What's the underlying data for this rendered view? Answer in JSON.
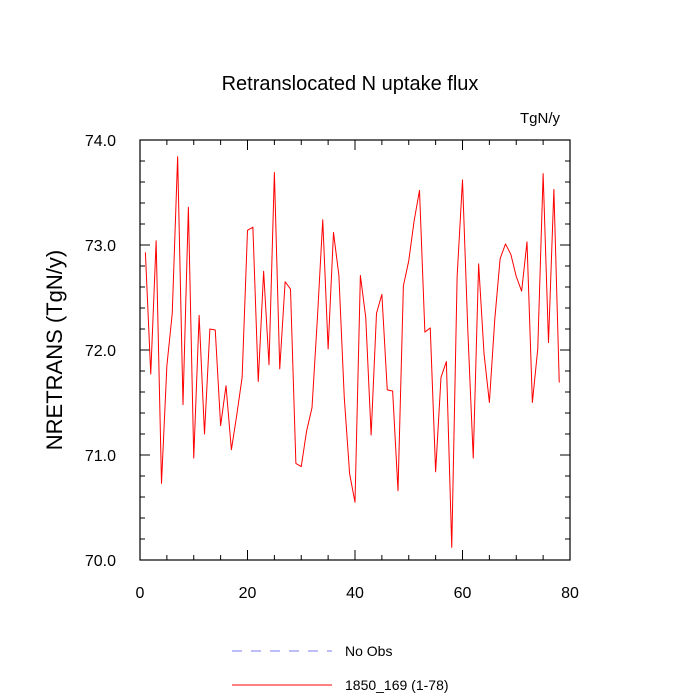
{
  "chart_data": {
    "type": "line",
    "title": "Retranslocated N uptake flux",
    "units": "TgN/y",
    "ylabel": "NRETRANS  (TgN/y)",
    "xlabel": "",
    "xlim": [
      0,
      80
    ],
    "ylim": [
      70.0,
      74.0
    ],
    "x_ticks": [
      "0",
      "20",
      "40",
      "60",
      "80"
    ],
    "y_ticks": [
      "70.0",
      "71.0",
      "72.0",
      "73.0",
      "74.0"
    ],
    "grid": false,
    "legend_position": "bottom",
    "series": [
      {
        "name": "No Obs",
        "style": "dashed",
        "color": "#7b7bf0",
        "x": [],
        "y": []
      },
      {
        "name": "1850_169 (1-78)",
        "style": "solid",
        "color": "#ff0000",
        "x": [
          1,
          2,
          3,
          4,
          5,
          6,
          7,
          8,
          9,
          10,
          11,
          12,
          13,
          14,
          15,
          16,
          17,
          18,
          19,
          20,
          21,
          22,
          23,
          24,
          25,
          26,
          27,
          28,
          29,
          30,
          31,
          32,
          33,
          34,
          35,
          36,
          37,
          38,
          39,
          40,
          41,
          42,
          43,
          44,
          45,
          46,
          47,
          48,
          49,
          50,
          51,
          52,
          53,
          54,
          55,
          56,
          57,
          58,
          59,
          60,
          61,
          62,
          63,
          64,
          65,
          66,
          67,
          68,
          69,
          70,
          71,
          72,
          73,
          74,
          75,
          76,
          77,
          78
        ],
        "y": [
          72.93,
          71.77,
          73.04,
          70.73,
          71.85,
          72.35,
          73.84,
          71.48,
          73.36,
          70.97,
          72.33,
          71.2,
          72.2,
          72.19,
          71.28,
          71.66,
          71.05,
          71.38,
          71.74,
          73.14,
          73.17,
          71.7,
          72.75,
          71.86,
          73.69,
          71.82,
          72.65,
          72.58,
          70.92,
          70.89,
          71.23,
          71.45,
          72.3,
          73.24,
          72.01,
          73.12,
          72.71,
          71.55,
          70.82,
          70.55,
          72.71,
          72.31,
          71.19,
          72.35,
          72.53,
          71.62,
          71.61,
          70.66,
          72.61,
          72.85,
          73.23,
          73.52,
          72.17,
          72.21,
          70.84,
          71.74,
          71.89,
          70.12,
          72.7,
          73.62,
          72.17,
          70.97,
          72.82,
          71.97,
          71.5,
          72.29,
          72.87,
          73.01,
          72.91,
          72.7,
          72.56,
          73.03,
          71.5,
          72.01,
          73.68,
          72.07,
          73.53,
          71.69
        ]
      }
    ]
  }
}
